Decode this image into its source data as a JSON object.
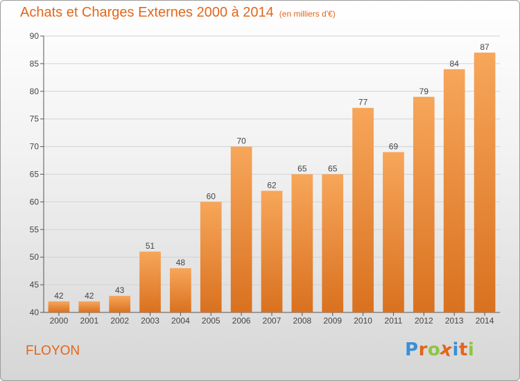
{
  "header": {
    "title": "Achats et Charges Externes 2000 à 2014",
    "subtitle": "(en milliers d'€)"
  },
  "footer": {
    "commune": "FLOYON",
    "logo_letters": [
      "P",
      "r",
      "o",
      "x",
      "i",
      "t",
      "i"
    ],
    "logo_colors": [
      "#3a8fd6",
      "#e2661a",
      "#8cc63f",
      "#e2661a",
      "#3a8fd6",
      "#e2661a",
      "#8cc63f"
    ]
  },
  "chart_data": {
    "type": "bar",
    "title": "Achats et Charges Externes 2000 à 2014",
    "subtitle": "(en milliers d'€)",
    "categories": [
      "2000",
      "2001",
      "2002",
      "2003",
      "2004",
      "2005",
      "2006",
      "2007",
      "2008",
      "2009",
      "2010",
      "2011",
      "2012",
      "2013",
      "2014"
    ],
    "values": [
      42,
      42,
      43,
      51,
      48,
      60,
      70,
      62,
      65,
      65,
      77,
      69,
      79,
      84,
      87
    ],
    "ylim": [
      40,
      90
    ],
    "yticks": [
      40,
      45,
      50,
      55,
      60,
      65,
      70,
      75,
      80,
      85,
      90
    ],
    "grid": true,
    "bar_color_top": "#f7a65a",
    "bar_color_bottom": "#d9711f"
  }
}
